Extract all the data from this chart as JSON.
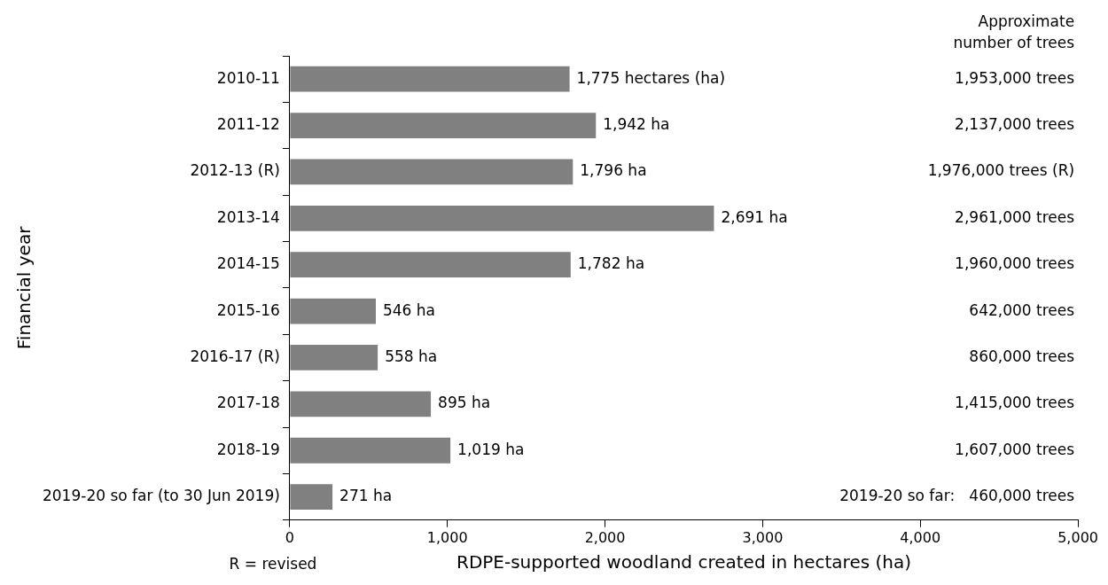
{
  "chart_data": {
    "type": "bar",
    "orientation": "horizontal",
    "xlabel": "RDPE-supported woodland created in hectares (ha)",
    "ylabel": "Financial year",
    "categories": [
      "2010-11",
      "2011-12",
      "2012-13 (R)",
      "2013-14",
      "2014-15",
      "2015-16",
      "2016-17 (R)",
      "2017-18",
      "2018-19",
      "2019-20 so far (to 30 Jun 2019)"
    ],
    "values": [
      1775,
      1942,
      1796,
      2691,
      1782,
      546,
      558,
      895,
      1019,
      271
    ],
    "value_labels": [
      "1,775 hectares (ha)",
      "1,942 ha",
      "1,796 ha",
      "2,691 ha",
      "1,782 ha",
      "546 ha",
      "558 ha",
      "895 ha",
      "1,019 ha",
      "271 ha"
    ],
    "color": "#808080",
    "xlim": [
      0,
      5000
    ],
    "xticks": [
      0,
      {
        "value": 1000,
        "label": "1,000"
      },
      {
        "value": 2000,
        "label": "2,000"
      },
      {
        "value": 3000,
        "label": "3,000"
      },
      {
        "value": 4000,
        "label": "4,000"
      },
      {
        "value": 5000,
        "label": "5,000"
      }
    ],
    "grid": false,
    "legend": false,
    "annotations": [
      "Approximate\nnumber of trees",
      "1,953,000 trees",
      "2,137,000 trees",
      "1,976,000 trees (R)",
      "2,961,000 trees",
      "1,960,000 trees",
      "642,000 trees",
      "860,000 trees",
      "1,415,000 trees",
      "1,607,000 trees",
      "2019-20 so far:   460,000 trees",
      "R = revised"
    ]
  }
}
